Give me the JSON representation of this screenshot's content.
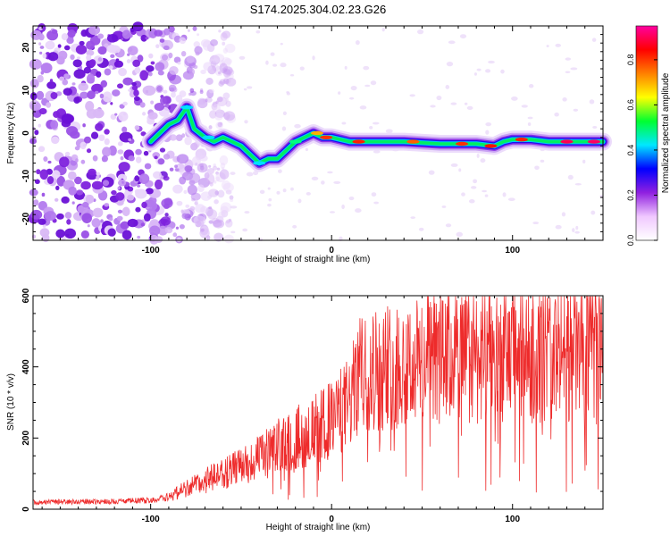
{
  "title": "S174.2025.304.02.23.G26",
  "chart_data": [
    {
      "type": "heatmap",
      "xlabel": "Height of straight line (km)",
      "ylabel": "Frequency (Hz)",
      "xlim": [
        -165,
        150
      ],
      "ylim": [
        -25,
        25
      ],
      "xticks": [
        -100,
        0,
        100
      ],
      "yticks": [
        -20,
        -10,
        0,
        10,
        20
      ],
      "trace": [
        {
          "x": -100,
          "y": -2
        },
        {
          "x": -95,
          "y": 0
        },
        {
          "x": -90,
          "y": 2
        },
        {
          "x": -85,
          "y": 3
        },
        {
          "x": -80,
          "y": 6
        },
        {
          "x": -76,
          "y": 1
        },
        {
          "x": -70,
          "y": -1
        },
        {
          "x": -65,
          "y": -2
        },
        {
          "x": -60,
          "y": -1
        },
        {
          "x": -55,
          "y": -2
        },
        {
          "x": -50,
          "y": -3
        },
        {
          "x": -45,
          "y": -5
        },
        {
          "x": -40,
          "y": -7
        },
        {
          "x": -35,
          "y": -6
        },
        {
          "x": -30,
          "y": -6
        },
        {
          "x": -25,
          "y": -4
        },
        {
          "x": -20,
          "y": -2
        },
        {
          "x": -15,
          "y": -1
        },
        {
          "x": -10,
          "y": 0
        },
        {
          "x": -5,
          "y": -1
        },
        {
          "x": 0,
          "y": -1
        },
        {
          "x": 10,
          "y": -2
        },
        {
          "x": 20,
          "y": -2
        },
        {
          "x": 40,
          "y": -2
        },
        {
          "x": 60,
          "y": -2.5
        },
        {
          "x": 80,
          "y": -2.5
        },
        {
          "x": 90,
          "y": -3
        },
        {
          "x": 95,
          "y": -2
        },
        {
          "x": 100,
          "y": -1.5
        },
        {
          "x": 110,
          "y": -1.5
        },
        {
          "x": 120,
          "y": -2
        },
        {
          "x": 135,
          "y": -2
        },
        {
          "x": 150,
          "y": -2
        }
      ]
    },
    {
      "type": "line",
      "xlabel": "Height of straight line (km)",
      "ylabel": "SNR (10 * v/v)",
      "xlim": [
        -165,
        150
      ],
      "ylim": [
        0,
        600
      ],
      "xticks": [
        -100,
        0,
        100
      ],
      "yticks": [
        0,
        200,
        400,
        600
      ],
      "color": "#ee2b2b",
      "envelope": [
        {
          "x": -165,
          "y": 20
        },
        {
          "x": -120,
          "y": 22
        },
        {
          "x": -100,
          "y": 25
        },
        {
          "x": -90,
          "y": 35
        },
        {
          "x": -80,
          "y": 60
        },
        {
          "x": -70,
          "y": 80
        },
        {
          "x": -60,
          "y": 100
        },
        {
          "x": -50,
          "y": 120
        },
        {
          "x": -40,
          "y": 145
        },
        {
          "x": -30,
          "y": 175
        },
        {
          "x": -20,
          "y": 200
        },
        {
          "x": -10,
          "y": 220
        },
        {
          "x": 0,
          "y": 250
        },
        {
          "x": 10,
          "y": 300
        },
        {
          "x": 15,
          "y": 370
        },
        {
          "x": 20,
          "y": 390
        },
        {
          "x": 40,
          "y": 410
        },
        {
          "x": 60,
          "y": 420
        },
        {
          "x": 80,
          "y": 430
        },
        {
          "x": 100,
          "y": 435
        },
        {
          "x": 120,
          "y": 440
        },
        {
          "x": 140,
          "y": 450
        },
        {
          "x": 150,
          "y": 450
        }
      ]
    }
  ],
  "colorbar": {
    "label": "Normalized spectral amplitude",
    "ticks": [
      "0.0",
      "0.2",
      "0.4",
      "0.6",
      "0.8"
    ],
    "range": [
      0,
      0.95
    ],
    "colors": [
      "#ffffff",
      "#f0c8ff",
      "#9020e0",
      "#0000ff",
      "#00e8ff",
      "#00ff30",
      "#ffff00",
      "#ff8000",
      "#ff0000",
      "#ff00a0"
    ]
  }
}
